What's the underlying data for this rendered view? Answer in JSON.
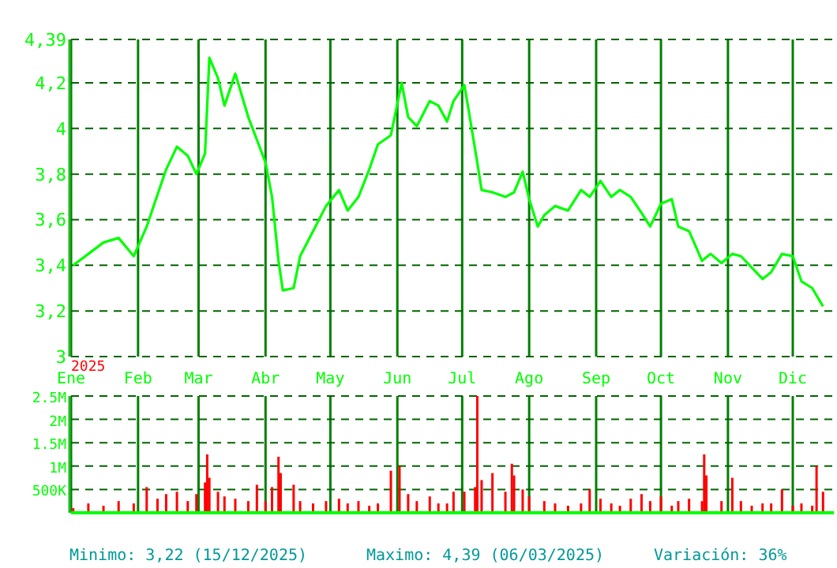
{
  "chart_data": [
    {
      "type": "line",
      "xlim": [
        "2025-01-01",
        "2025-12-20"
      ],
      "ylim": [
        3,
        4.39
      ],
      "xticks": [
        {
          "value": "2025-01-01",
          "label": "Ene"
        },
        {
          "value": "2025-02-01",
          "label": "Feb"
        },
        {
          "value": "2025-03-01",
          "label": "Mar"
        },
        {
          "value": "2025-04-01",
          "label": "Abr"
        },
        {
          "value": "2025-05-01",
          "label": "May"
        },
        {
          "value": "2025-06-01",
          "label": "Jun"
        },
        {
          "value": "2025-07-01",
          "label": "Jul"
        },
        {
          "value": "2025-08-01",
          "label": "Ago"
        },
        {
          "value": "2025-09-01",
          "label": "Sep"
        },
        {
          "value": "2025-10-01",
          "label": "Oct"
        },
        {
          "value": "2025-11-01",
          "label": "Nov"
        },
        {
          "value": "2025-12-01",
          "label": "Dic"
        }
      ],
      "yticks": [
        3,
        {
          "value": 3.2,
          "label": "3,2"
        },
        {
          "value": 3.4,
          "label": "3,4"
        },
        {
          "value": 3.6,
          "label": "3,6"
        },
        {
          "value": 3.8,
          "label": "3,8"
        },
        4,
        {
          "value": 4.2,
          "label": "4,2"
        },
        {
          "value": 4.39,
          "label": "4,39"
        }
      ],
      "grid": true,
      "annotations": [
        "2025"
      ],
      "series": [
        {
          "color": "#00ff00",
          "x": [
            "2025-01-02",
            "2025-01-09",
            "2025-01-16",
            "2025-01-23",
            "2025-01-30",
            "2025-02-05",
            "2025-02-10",
            "2025-02-14",
            "2025-02-19",
            "2025-02-24",
            "2025-02-28",
            "2025-03-04",
            "2025-03-06",
            "2025-03-10",
            "2025-03-13",
            "2025-03-18",
            "2025-03-24",
            "2025-03-28",
            "2025-04-01",
            "2025-04-04",
            "2025-04-07",
            "2025-04-09",
            "2025-04-14",
            "2025-04-17",
            "2025-04-23",
            "2025-04-29",
            "2025-05-05",
            "2025-05-09",
            "2025-05-14",
            "2025-05-19",
            "2025-05-23",
            "2025-05-29",
            "2025-06-03",
            "2025-06-06",
            "2025-06-10",
            "2025-06-16",
            "2025-06-20",
            "2025-06-24",
            "2025-06-27",
            "2025-07-02",
            "2025-07-04",
            "2025-07-08",
            "2025-07-10",
            "2025-07-15",
            "2025-07-21",
            "2025-07-25",
            "2025-07-29",
            "2025-08-01",
            "2025-08-05",
            "2025-08-08",
            "2025-08-13",
            "2025-08-19",
            "2025-08-25",
            "2025-08-29",
            "2025-09-03",
            "2025-09-08",
            "2025-09-12",
            "2025-09-17",
            "2025-09-22",
            "2025-09-26",
            "2025-10-01",
            "2025-10-06",
            "2025-10-09",
            "2025-10-14",
            "2025-10-20",
            "2025-10-24",
            "2025-10-29",
            "2025-11-03",
            "2025-11-07",
            "2025-11-12",
            "2025-11-17",
            "2025-11-21",
            "2025-11-26",
            "2025-12-01",
            "2025-12-05",
            "2025-12-10",
            "2025-12-15"
          ],
          "values": [
            3.4,
            3.45,
            3.5,
            3.52,
            3.44,
            3.57,
            3.71,
            3.82,
            3.92,
            3.88,
            3.8,
            3.89,
            4.31,
            4.22,
            4.1,
            4.24,
            4.05,
            3.95,
            3.85,
            3.7,
            3.42,
            3.29,
            3.3,
            3.44,
            3.55,
            3.66,
            3.73,
            3.64,
            3.7,
            3.82,
            3.93,
            3.97,
            4.2,
            4.05,
            4.01,
            4.12,
            4.1,
            4.03,
            4.12,
            4.19,
            4.08,
            3.85,
            3.73,
            3.72,
            3.7,
            3.72,
            3.81,
            3.69,
            3.57,
            3.62,
            3.66,
            3.64,
            3.73,
            3.7,
            3.77,
            3.7,
            3.73,
            3.7,
            3.63,
            3.57,
            3.67,
            3.69,
            3.57,
            3.55,
            3.42,
            3.45,
            3.41,
            3.45,
            3.44,
            3.39,
            3.34,
            3.37,
            3.45,
            3.44,
            3.33,
            3.3,
            3.22
          ]
        }
      ]
    },
    {
      "type": "bar",
      "xlim": [
        "2025-01-01",
        "2025-12-20"
      ],
      "ylim": [
        0,
        2500000
      ],
      "xticks": [
        {
          "value": "2025-01-01",
          "label": null
        },
        {
          "value": "2025-02-01",
          "label": null
        },
        {
          "value": "2025-03-01",
          "label": null
        },
        {
          "value": "2025-04-01",
          "label": null
        },
        {
          "value": "2025-05-01",
          "label": null
        },
        {
          "value": "2025-06-01",
          "label": null
        },
        {
          "value": "2025-07-01",
          "label": null
        },
        {
          "value": "2025-08-01",
          "label": null
        },
        {
          "value": "2025-09-01",
          "label": null
        },
        {
          "value": "2025-10-01",
          "label": null
        },
        {
          "value": "2025-11-01",
          "label": null
        },
        {
          "value": "2025-12-01",
          "label": null
        }
      ],
      "yticks": [
        {
          "value": 500000,
          "label": "500K"
        },
        {
          "value": 1000000,
          "label": "1M"
        },
        {
          "value": 1500000,
          "label": "1.5M"
        },
        {
          "value": 2000000,
          "label": "2M"
        },
        {
          "value": 2500000,
          "label": "2.5M"
        }
      ],
      "grid": true,
      "tick_labels": "y",
      "annotations": [
        "Minimo: 3,22 (15/12/2025)",
        "Maximo: 4,39 (06/03/2025)",
        "Variación: 36%"
      ],
      "series": [
        {
          "color": "#ff0000",
          "x": [
            "2025-01-02",
            "2025-01-09",
            "2025-01-16",
            "2025-01-23",
            "2025-01-30",
            "2025-02-05",
            "2025-02-10",
            "2025-02-14",
            "2025-02-19",
            "2025-02-24",
            "2025-02-28",
            "2025-03-04",
            "2025-03-05",
            "2025-03-06",
            "2025-03-10",
            "2025-03-13",
            "2025-03-18",
            "2025-03-24",
            "2025-03-28",
            "2025-04-01",
            "2025-04-04",
            "2025-04-07",
            "2025-04-08",
            "2025-04-14",
            "2025-04-17",
            "2025-04-23",
            "2025-04-29",
            "2025-05-05",
            "2025-05-09",
            "2025-05-14",
            "2025-05-19",
            "2025-05-23",
            "2025-05-29",
            "2025-06-02",
            "2025-06-06",
            "2025-06-10",
            "2025-06-16",
            "2025-06-20",
            "2025-06-24",
            "2025-06-27",
            "2025-07-02",
            "2025-07-07",
            "2025-07-08",
            "2025-07-10",
            "2025-07-15",
            "2025-07-21",
            "2025-07-24",
            "2025-07-25",
            "2025-07-29",
            "2025-08-01",
            "2025-08-08",
            "2025-08-13",
            "2025-08-19",
            "2025-08-25",
            "2025-08-29",
            "2025-09-03",
            "2025-09-08",
            "2025-09-12",
            "2025-09-17",
            "2025-09-22",
            "2025-09-26",
            "2025-10-01",
            "2025-10-06",
            "2025-10-09",
            "2025-10-14",
            "2025-10-20",
            "2025-10-21",
            "2025-10-22",
            "2025-10-29",
            "2025-11-03",
            "2025-11-07",
            "2025-11-12",
            "2025-11-17",
            "2025-11-21",
            "2025-11-26",
            "2025-12-01",
            "2025-12-05",
            "2025-12-10",
            "2025-12-12",
            "2025-12-15"
          ],
          "values": [
            100000,
            200000,
            150000,
            250000,
            200000,
            550000,
            300000,
            400000,
            450000,
            250000,
            400000,
            650000,
            1250000,
            750000,
            450000,
            350000,
            300000,
            250000,
            600000,
            250000,
            550000,
            1200000,
            850000,
            600000,
            250000,
            200000,
            250000,
            300000,
            200000,
            250000,
            150000,
            200000,
            900000,
            1000000,
            400000,
            250000,
            350000,
            200000,
            200000,
            450000,
            450000,
            550000,
            2500000,
            700000,
            850000,
            450000,
            1050000,
            800000,
            500000,
            350000,
            250000,
            200000,
            150000,
            200000,
            500000,
            300000,
            200000,
            150000,
            300000,
            400000,
            250000,
            350000,
            150000,
            250000,
            300000,
            250000,
            1250000,
            800000,
            250000,
            750000,
            250000,
            150000,
            200000,
            200000,
            500000,
            150000,
            200000,
            150000,
            1000000,
            450000
          ]
        }
      ]
    }
  ]
}
